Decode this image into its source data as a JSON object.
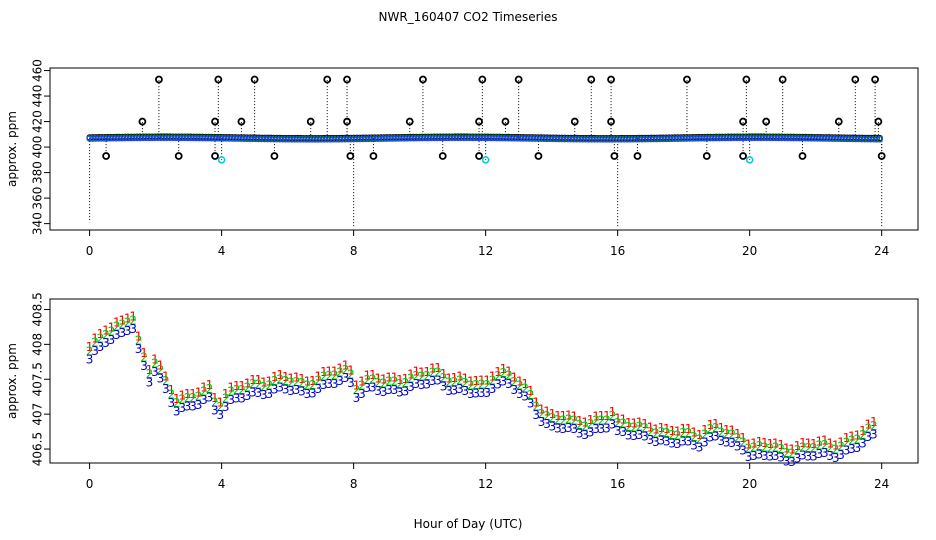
{
  "chart_data": {
    "title": "NWR_160407  CO2 Timeseries",
    "xlabel": "Hour of Day (UTC)",
    "panels": [
      {
        "id": "top",
        "type": "scatter",
        "ylabel": "approx. ppm",
        "xlim": [
          -1.2,
          25.1
        ],
        "ylim": [
          335,
          462
        ],
        "x_ticks": [
          "0",
          "4",
          "8",
          "12",
          "16",
          "20",
          "24"
        ],
        "y_ticks": [
          "340",
          "360",
          "380",
          "400",
          "420",
          "440",
          "460"
        ],
        "baseline": 407,
        "spikes": [
          {
            "x": 2.1,
            "y": 453
          },
          {
            "x": 3.9,
            "y": 453
          },
          {
            "x": 5.0,
            "y": 453
          },
          {
            "x": 7.2,
            "y": 453
          },
          {
            "x": 7.8,
            "y": 453
          },
          {
            "x": 10.1,
            "y": 453
          },
          {
            "x": 11.9,
            "y": 453
          },
          {
            "x": 13.0,
            "y": 453
          },
          {
            "x": 15.2,
            "y": 453
          },
          {
            "x": 15.8,
            "y": 453
          },
          {
            "x": 18.1,
            "y": 453
          },
          {
            "x": 19.9,
            "y": 453
          },
          {
            "x": 21.0,
            "y": 453
          },
          {
            "x": 23.2,
            "y": 453
          },
          {
            "x": 23.8,
            "y": 453
          },
          {
            "x": 1.6,
            "y": 420
          },
          {
            "x": 3.8,
            "y": 420
          },
          {
            "x": 4.6,
            "y": 420
          },
          {
            "x": 6.7,
            "y": 420
          },
          {
            "x": 7.8,
            "y": 420
          },
          {
            "x": 9.7,
            "y": 420
          },
          {
            "x": 11.8,
            "y": 420
          },
          {
            "x": 12.6,
            "y": 420
          },
          {
            "x": 14.7,
            "y": 420
          },
          {
            "x": 15.8,
            "y": 420
          },
          {
            "x": 19.8,
            "y": 420
          },
          {
            "x": 20.5,
            "y": 420
          },
          {
            "x": 22.7,
            "y": 420
          },
          {
            "x": 23.9,
            "y": 420
          },
          {
            "x": 0.5,
            "y": 393
          },
          {
            "x": 2.7,
            "y": 393
          },
          {
            "x": 3.8,
            "y": 393
          },
          {
            "x": 5.6,
            "y": 393
          },
          {
            "x": 7.9,
            "y": 393
          },
          {
            "x": 8.6,
            "y": 393
          },
          {
            "x": 10.7,
            "y": 393
          },
          {
            "x": 11.8,
            "y": 393
          },
          {
            "x": 13.6,
            "y": 393
          },
          {
            "x": 15.9,
            "y": 393
          },
          {
            "x": 16.6,
            "y": 393
          },
          {
            "x": 18.7,
            "y": 393
          },
          {
            "x": 19.8,
            "y": 393
          },
          {
            "x": 21.6,
            "y": 393
          },
          {
            "x": 24.0,
            "y": 393
          }
        ],
        "cyan_points": [
          {
            "x": 4.0,
            "y": 390
          },
          {
            "x": 12.0,
            "y": 390
          },
          {
            "x": 20.0,
            "y": 390
          }
        ],
        "drops": [
          {
            "x": 0.0,
            "y": 341
          },
          {
            "x": 8.0,
            "y": 337
          },
          {
            "x": 16.0,
            "y": 337
          },
          {
            "x": 24.0,
            "y": 337
          }
        ]
      },
      {
        "id": "bottom",
        "type": "scatter",
        "ylabel": "approx. ppm",
        "xlim": [
          -1.2,
          25.1
        ],
        "ylim": [
          406.3,
          408.65
        ],
        "x_ticks": [
          "0",
          "4",
          "8",
          "12",
          "16",
          "20",
          "24"
        ],
        "y_ticks": [
          "406.5",
          "407",
          "407.5",
          "408",
          "408.5"
        ],
        "series": [
          {
            "name": "1",
            "label": "1",
            "color": "#ff0000",
            "offset": 0.14
          },
          {
            "name": "2",
            "label": "2",
            "color": "#00cc00",
            "offset": 0.08
          },
          {
            "name": "3",
            "label": "3",
            "color": "#0000cc",
            "offset": -0.04
          }
        ],
        "x": [
          0.0,
          0.5,
          1.0,
          1.3,
          1.5,
          1.8,
          2.0,
          2.3,
          2.6,
          3.0,
          3.3,
          3.6,
          3.9,
          4.0,
          4.3,
          4.7,
          5.0,
          5.5,
          6.0,
          6.5,
          7.0,
          7.5,
          7.9,
          8.0,
          8.5,
          9.0,
          9.5,
          10.0,
          10.5,
          11.0,
          11.5,
          11.9,
          12.0,
          12.3,
          12.6,
          13.0,
          13.3,
          13.6,
          14.0,
          14.4,
          14.8,
          15.2,
          15.6,
          15.9,
          16.0,
          16.5,
          17.0,
          17.5,
          18.0,
          18.5,
          19.0,
          19.5,
          19.9,
          20.0,
          20.5,
          21.0,
          21.5,
          22.0,
          22.5,
          23.0,
          23.4,
          23.8
        ],
        "values": [
          407.8,
          408.1,
          408.2,
          408.3,
          407.9,
          407.5,
          407.7,
          407.4,
          407.1,
          407.1,
          407.2,
          407.3,
          407.0,
          407.1,
          407.2,
          407.3,
          407.35,
          407.35,
          407.4,
          407.35,
          407.4,
          407.5,
          407.55,
          407.3,
          407.4,
          407.35,
          407.4,
          407.45,
          407.5,
          407.4,
          407.35,
          407.3,
          407.3,
          407.5,
          407.5,
          407.35,
          407.2,
          407.0,
          406.85,
          406.85,
          406.75,
          406.8,
          406.85,
          406.9,
          406.75,
          406.75,
          406.7,
          406.6,
          406.65,
          406.6,
          406.7,
          406.6,
          406.55,
          406.4,
          406.45,
          406.4,
          406.4,
          406.45,
          406.45,
          406.5,
          406.6,
          406.75
        ]
      }
    ]
  }
}
